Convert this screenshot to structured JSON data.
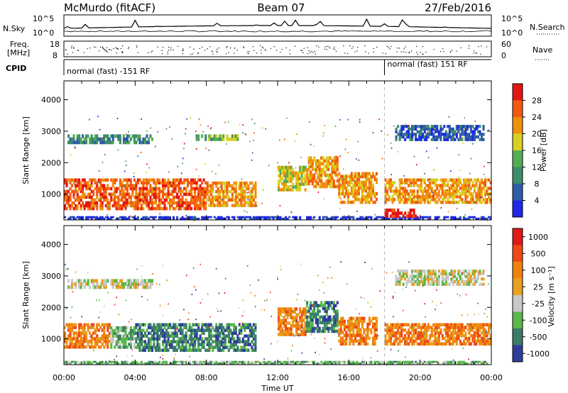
{
  "header": {
    "site": "McMurdo (fitACF)",
    "beam": "Beam 07",
    "date": "27/Feb/2016"
  },
  "params": {
    "nsky_label": "N.Sky",
    "nsky_ticks": [
      "10^5",
      "10^0"
    ],
    "nsearch_label": "N.Search",
    "nsearch_ticks": [
      "10^5",
      "10^0"
    ],
    "freq_label_1": "Freq.",
    "freq_label_2": "[MHz]",
    "freq_ticks": [
      "18",
      "8"
    ],
    "nave_label": "Nave",
    "nave_ticks": [
      "60",
      "0"
    ],
    "cpid_label": "CPID",
    "cpid_modes": [
      {
        "text": "normal (fast) -151 RF",
        "start_hour": 0.0
      },
      {
        "text": "normal (fast) 151 RF",
        "start_hour": 18.0
      }
    ]
  },
  "chart_data": [
    {
      "type": "heatmap",
      "name": "power",
      "ylabel": "Slant Range [km]",
      "yticks": [
        1000,
        2000,
        3000,
        4000
      ],
      "ylim": [
        180,
        4600
      ],
      "xlim": [
        0,
        24
      ],
      "colorbar": {
        "label": "Power [dB]",
        "ticks": [
          "4",
          "8",
          "12",
          "16",
          "20",
          "24",
          "28"
        ],
        "colors": [
          "#1e28e6",
          "#2e5ca8",
          "#3c8c6a",
          "#52ae52",
          "#d8d020",
          "#f0900c",
          "#f25a10",
          "#e51414"
        ]
      },
      "bands": [
        {
          "h0": 0.0,
          "h1": 8.0,
          "r0": 500,
          "r1": 1500,
          "level": 6
        },
        {
          "h0": 8.0,
          "h1": 10.8,
          "r0": 600,
          "r1": 1400,
          "level": 5
        },
        {
          "h0": 12.0,
          "h1": 13.6,
          "r0": 1100,
          "r1": 1900,
          "level": 4
        },
        {
          "h0": 13.6,
          "h1": 15.4,
          "r0": 1200,
          "r1": 2200,
          "level": 5
        },
        {
          "h0": 15.4,
          "h1": 17.6,
          "r0": 700,
          "r1": 1700,
          "level": 5
        },
        {
          "h0": 18.0,
          "h1": 24.0,
          "r0": 700,
          "r1": 1500,
          "level": 5
        },
        {
          "h0": 0.2,
          "h1": 5.0,
          "r0": 2600,
          "r1": 2900,
          "level": 2
        },
        {
          "h0": 18.6,
          "h1": 23.6,
          "r0": 2700,
          "r1": 3200,
          "level": 1
        },
        {
          "h0": 7.4,
          "h1": 9.8,
          "r0": 2700,
          "r1": 2900,
          "level": 3
        },
        {
          "h0": 0.0,
          "h1": 24.0,
          "r0": 200,
          "r1": 300,
          "level": 0
        },
        {
          "h0": 18.0,
          "h1": 19.8,
          "r0": 260,
          "r1": 540,
          "level": 7
        }
      ]
    },
    {
      "type": "heatmap",
      "name": "velocity",
      "ylabel": "Slant Range [km]",
      "yticks": [
        1000,
        2000,
        3000,
        4000
      ],
      "ylim": [
        180,
        4600
      ],
      "xlim": [
        0,
        24
      ],
      "xlabel": "Time UT",
      "xticks": [
        "00:00",
        "04:00",
        "08:00",
        "12:00",
        "16:00",
        "20:00",
        "00:00"
      ],
      "xtick_hours": [
        0,
        4,
        8,
        12,
        16,
        20,
        24
      ],
      "colorbar": {
        "label": "Velocity [m s⁻¹]",
        "ticks": [
          "1000",
          "500",
          "100",
          "25",
          "-25",
          "-100",
          "-500",
          "-1000"
        ],
        "colors": [
          "#2e3c9c",
          "#3a7c6a",
          "#58b848",
          "#c8c8c8",
          "#e8a020",
          "#f0820c",
          "#ef4818",
          "#e01818"
        ]
      },
      "bands": [
        {
          "h0": 0.0,
          "h1": 2.6,
          "r0": 700,
          "r1": 1500,
          "level": 5
        },
        {
          "h0": 2.6,
          "h1": 4.0,
          "r0": 700,
          "r1": 1400,
          "level": 2
        },
        {
          "h0": 4.0,
          "h1": 10.8,
          "r0": 600,
          "r1": 1500,
          "level": 1
        },
        {
          "h0": 12.0,
          "h1": 13.6,
          "r0": 1100,
          "r1": 2000,
          "level": 5
        },
        {
          "h0": 13.6,
          "h1": 15.4,
          "r0": 1200,
          "r1": 2200,
          "level": 1
        },
        {
          "h0": 15.4,
          "h1": 17.6,
          "r0": 800,
          "r1": 1700,
          "level": 5
        },
        {
          "h0": 18.0,
          "h1": 24.0,
          "r0": 800,
          "r1": 1500,
          "level": 5
        },
        {
          "h0": 0.2,
          "h1": 5.0,
          "r0": 2600,
          "r1": 2900,
          "level": 3
        },
        {
          "h0": 18.6,
          "h1": 23.6,
          "r0": 2700,
          "r1": 3200,
          "level": 3
        },
        {
          "h0": 0.0,
          "h1": 24.0,
          "r0": 200,
          "r1": 300,
          "level": 2
        }
      ]
    }
  ]
}
